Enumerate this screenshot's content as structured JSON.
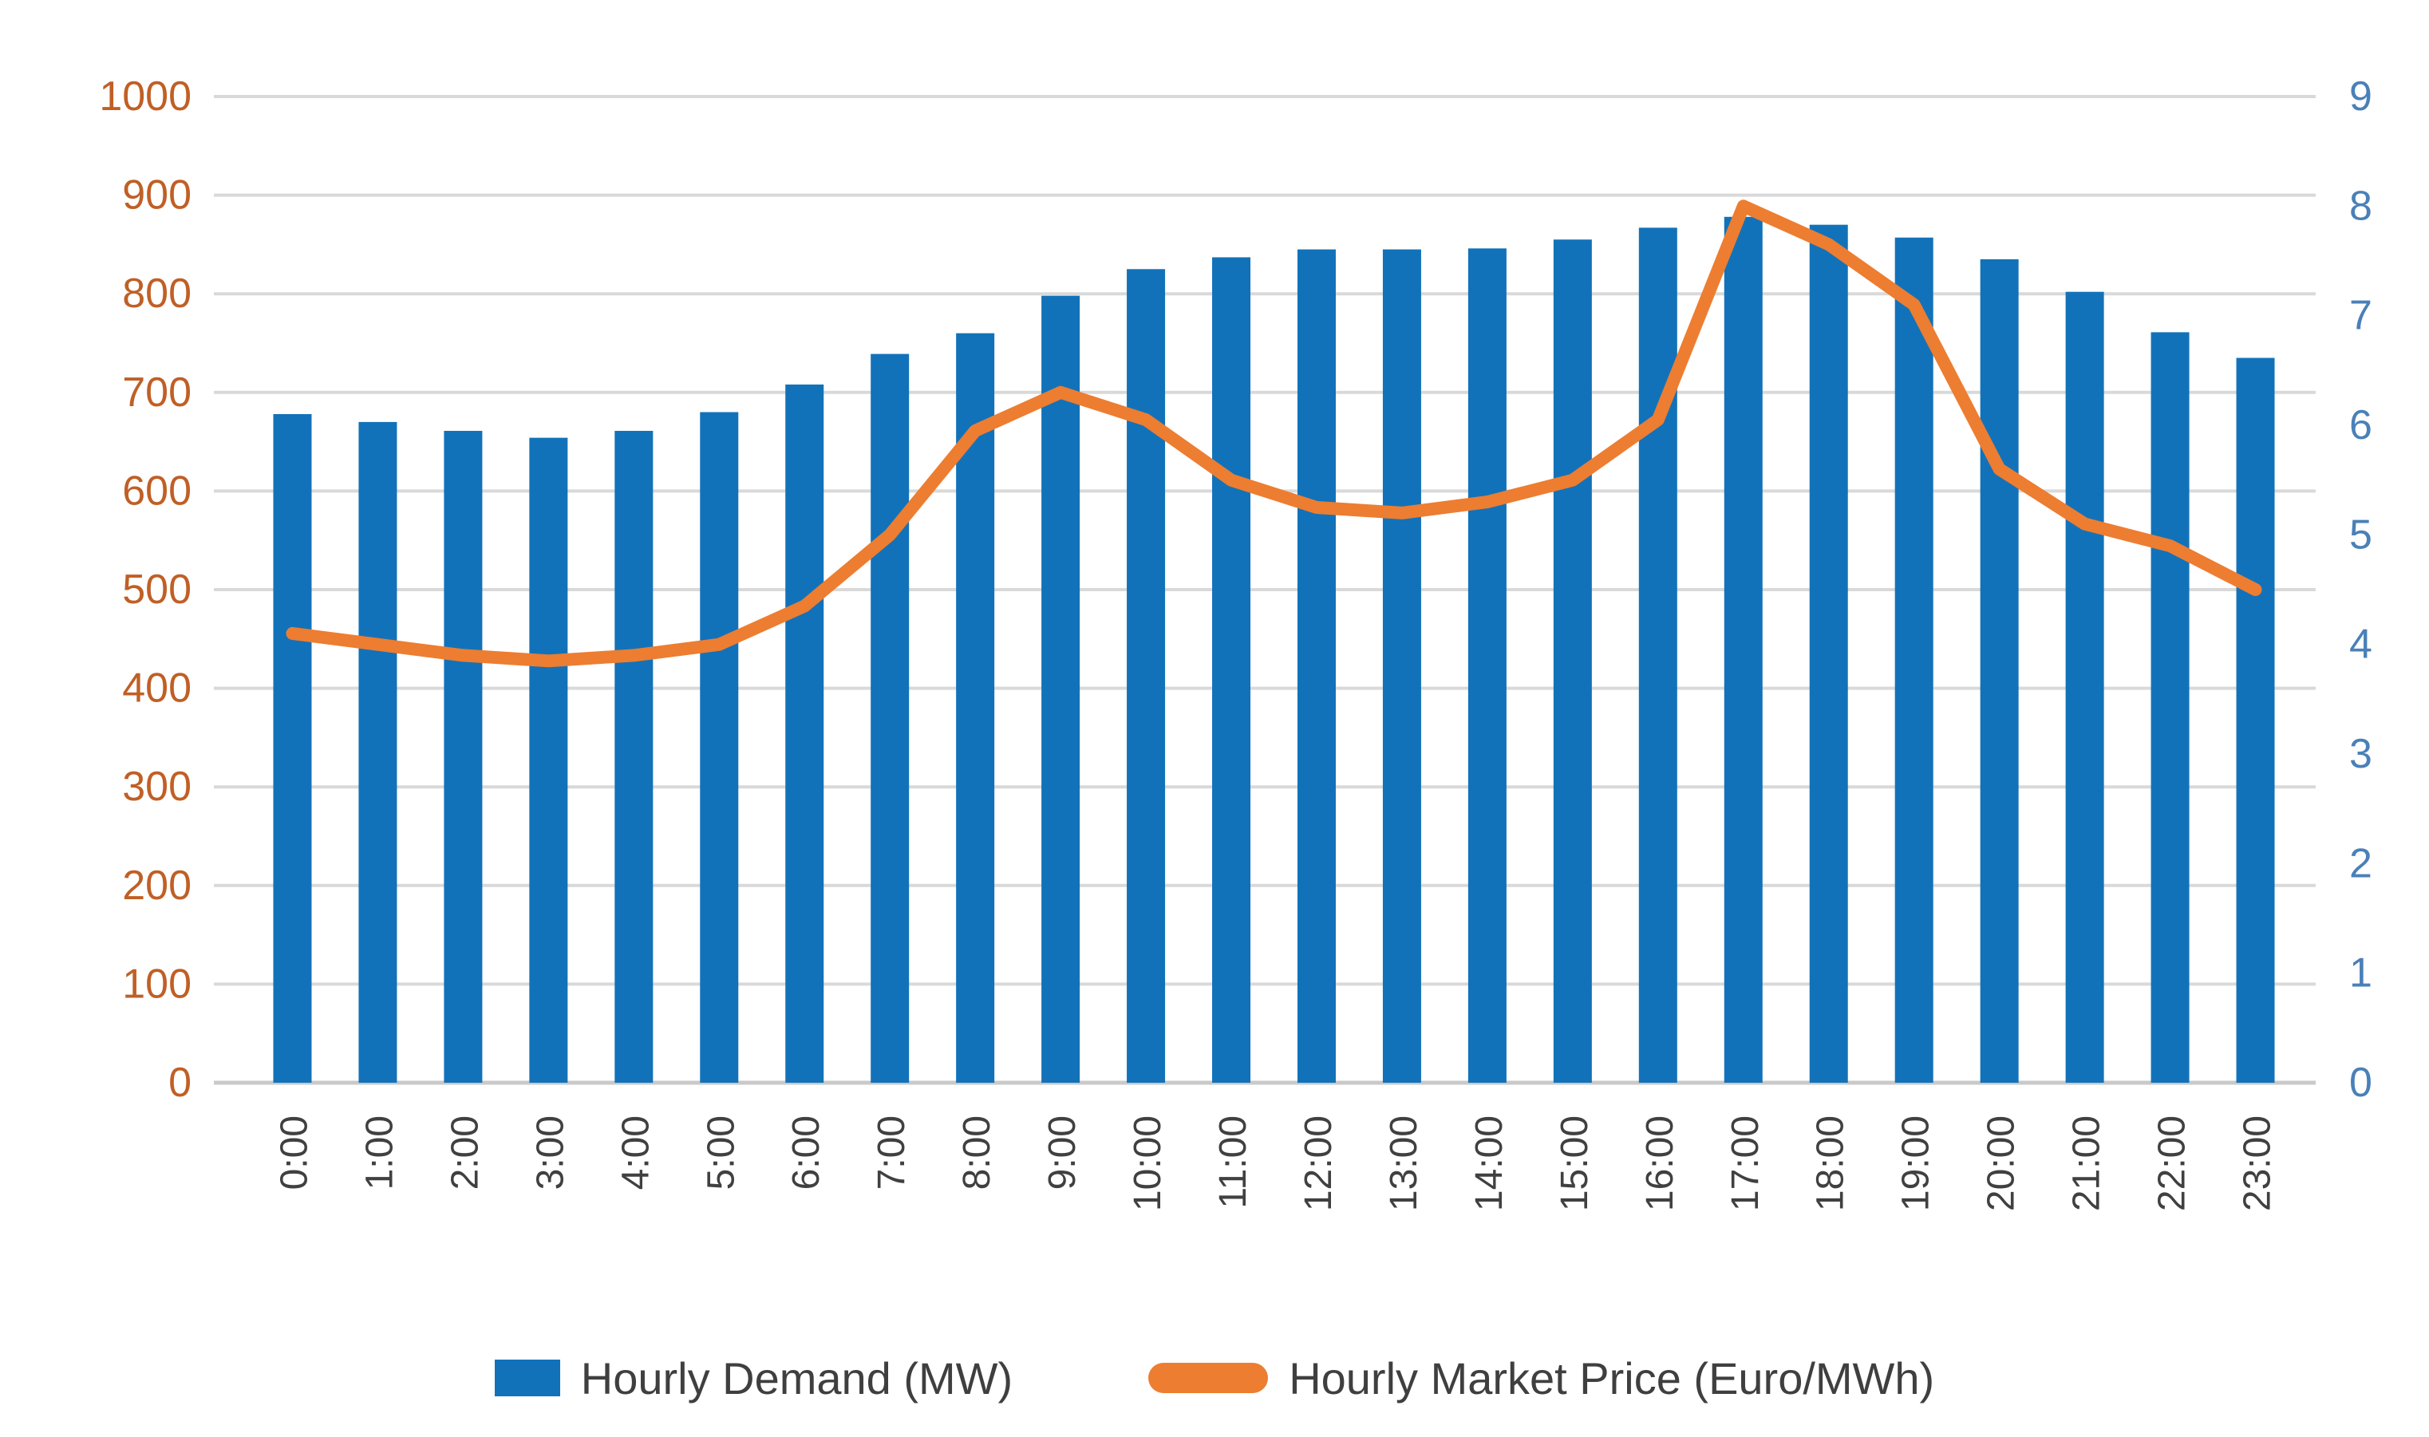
{
  "chart_data": {
    "type": "combo-bar-line",
    "title": "",
    "categories": [
      "0:00",
      "1:00",
      "2:00",
      "3:00",
      "4:00",
      "5:00",
      "6:00",
      "7:00",
      "8:00",
      "9:00",
      "10:00",
      "11:00",
      "12:00",
      "13:00",
      "14:00",
      "15:00",
      "16:00",
      "17:00",
      "18:00",
      "19:00",
      "20:00",
      "21:00",
      "22:00",
      "23:00"
    ],
    "series": [
      {
        "name": "Hourly Demand (MW)",
        "type": "bar",
        "axis": "left",
        "color": "#1272b9",
        "values": [
          678,
          670,
          661,
          654,
          661,
          680,
          708,
          739,
          760,
          798,
          825,
          837,
          845,
          845,
          846,
          855,
          867,
          878,
          870,
          857,
          835,
          802,
          761,
          735
        ]
      },
      {
        "name": "Hourly Market Price (Euro/MWh)",
        "type": "line",
        "axis": "right",
        "color": "#ed7d31",
        "values": [
          4.1,
          4.0,
          3.9,
          3.85,
          3.9,
          4.0,
          4.35,
          5.0,
          5.95,
          6.3,
          6.05,
          5.5,
          5.25,
          5.2,
          5.3,
          5.5,
          6.05,
          8.0,
          7.65,
          7.1,
          5.6,
          5.1,
          4.9,
          4.5
        ]
      }
    ],
    "left_axis": {
      "min": 0,
      "max": 1000,
      "step": 100,
      "label_color": "#c05f25",
      "tick_labels": [
        "0",
        "100",
        "200",
        "300",
        "400",
        "500",
        "600",
        "700",
        "800",
        "900",
        "1000"
      ]
    },
    "right_axis": {
      "min": 0,
      "max": 9,
      "step": 1,
      "label_color": "#4a80b8",
      "tick_labels": [
        "0",
        "1",
        "2",
        "3",
        "4",
        "5",
        "6",
        "7",
        "8",
        "9"
      ]
    },
    "grid": true,
    "gridline_color": "#d9d9d9",
    "x_label_color": "#404040",
    "legend_position": "bottom"
  }
}
